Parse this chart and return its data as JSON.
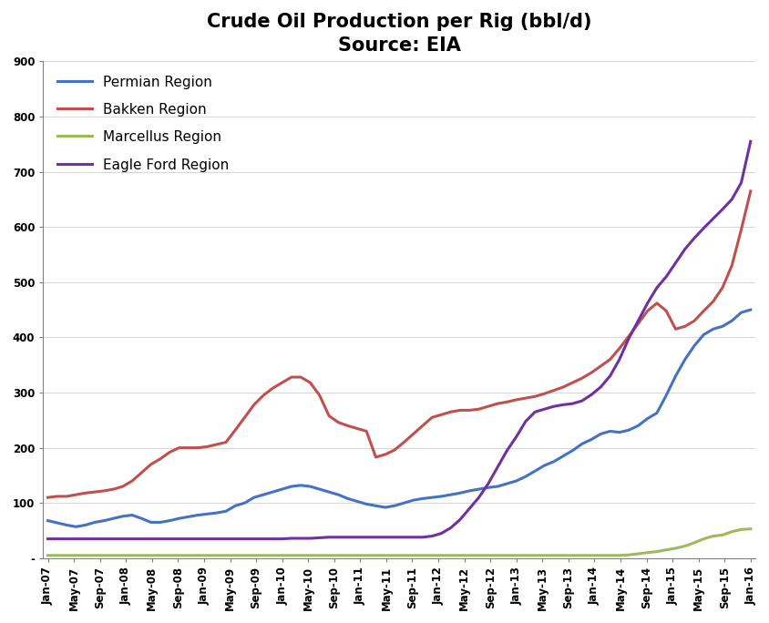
{
  "title": "Crude Oil Production per Rig (bbl/d)",
  "subtitle": "Source: EIA",
  "background_color": "#ffffff",
  "series": {
    "Permian Region": {
      "color": "#4472C4",
      "data": [
        68,
        64,
        60,
        57,
        60,
        65,
        68,
        72,
        76,
        78,
        72,
        65,
        65,
        68,
        72,
        75,
        78,
        80,
        82,
        85,
        95,
        100,
        110,
        115,
        120,
        125,
        130,
        132,
        130,
        125,
        120,
        115,
        108,
        103,
        98,
        95,
        92,
        95,
        100,
        105,
        108,
        110,
        112,
        115,
        118,
        122,
        125,
        128,
        130,
        135,
        140,
        148,
        158,
        168,
        175,
        185,
        195,
        207,
        215,
        225,
        230,
        228,
        232,
        240,
        253,
        263,
        295,
        330,
        360,
        385,
        405,
        415,
        420,
        430,
        445,
        450
      ]
    },
    "Bakken Region": {
      "color": "#C0504D",
      "data": [
        110,
        112,
        112,
        115,
        118,
        120,
        122,
        125,
        130,
        140,
        155,
        170,
        180,
        192,
        200,
        200,
        200,
        202,
        206,
        210,
        232,
        255,
        278,
        295,
        308,
        318,
        328,
        328,
        318,
        295,
        258,
        246,
        240,
        235,
        230,
        183,
        188,
        196,
        210,
        225,
        240,
        255,
        260,
        265,
        268,
        268,
        270,
        275,
        280,
        283,
        287,
        290,
        293,
        298,
        304,
        310,
        318,
        326,
        336,
        348,
        360,
        380,
        402,
        425,
        448,
        462,
        448,
        415,
        420,
        430,
        448,
        465,
        490,
        530,
        595,
        665
      ]
    },
    "Marcellus Region": {
      "color": "#9BBB59",
      "data": [
        5,
        5,
        5,
        5,
        5,
        5,
        5,
        5,
        5,
        5,
        5,
        5,
        5,
        5,
        5,
        5,
        5,
        5,
        5,
        5,
        5,
        5,
        5,
        5,
        5,
        5,
        5,
        5,
        5,
        5,
        5,
        5,
        5,
        5,
        5,
        5,
        5,
        5,
        5,
        5,
        5,
        5,
        5,
        5,
        5,
        5,
        5,
        5,
        5,
        5,
        5,
        5,
        5,
        5,
        5,
        5,
        5,
        5,
        5,
        5,
        5,
        5,
        6,
        8,
        10,
        12,
        15,
        18,
        22,
        28,
        35,
        40,
        42,
        48,
        52,
        53
      ]
    },
    "Eagle Ford Region": {
      "color": "#7030A0",
      "data": [
        35,
        35,
        35,
        35,
        35,
        35,
        35,
        35,
        35,
        35,
        35,
        35,
        35,
        35,
        35,
        35,
        35,
        35,
        35,
        35,
        35,
        35,
        35,
        35,
        35,
        35,
        36,
        36,
        36,
        37,
        38,
        38,
        38,
        38,
        38,
        38,
        38,
        38,
        38,
        38,
        38,
        40,
        45,
        55,
        70,
        90,
        110,
        135,
        165,
        195,
        220,
        248,
        265,
        270,
        275,
        278,
        280,
        285,
        296,
        310,
        330,
        360,
        398,
        430,
        462,
        490,
        510,
        535,
        560,
        580,
        598,
        615,
        632,
        650,
        680,
        755
      ]
    }
  },
  "n_months": 76,
  "start_year": 2007,
  "x_labels": [
    "Jan-07",
    "May-07",
    "Sep-07",
    "Jan-08",
    "May-08",
    "Sep-08",
    "Jan-09",
    "May-09",
    "Sep-09",
    "Jan-10",
    "May-10",
    "Sep-10",
    "Jan-11",
    "May-11",
    "Sep-11",
    "Jan-12",
    "May-12",
    "Sep-12",
    "Jan-13",
    "May-13",
    "Sep-13",
    "Jan-14",
    "May-14",
    "Sep-14",
    "Jan-15",
    "May-15",
    "Sep-15",
    "Jan-16"
  ],
  "ylim": [
    0,
    900
  ],
  "yticks": [
    0,
    100,
    200,
    300,
    400,
    500,
    600,
    700,
    800,
    900
  ],
  "ylabel_zero": "-",
  "line_width": 2.2,
  "title_fontsize": 15,
  "tick_fontsize": 8.5,
  "legend_fontsize": 11
}
